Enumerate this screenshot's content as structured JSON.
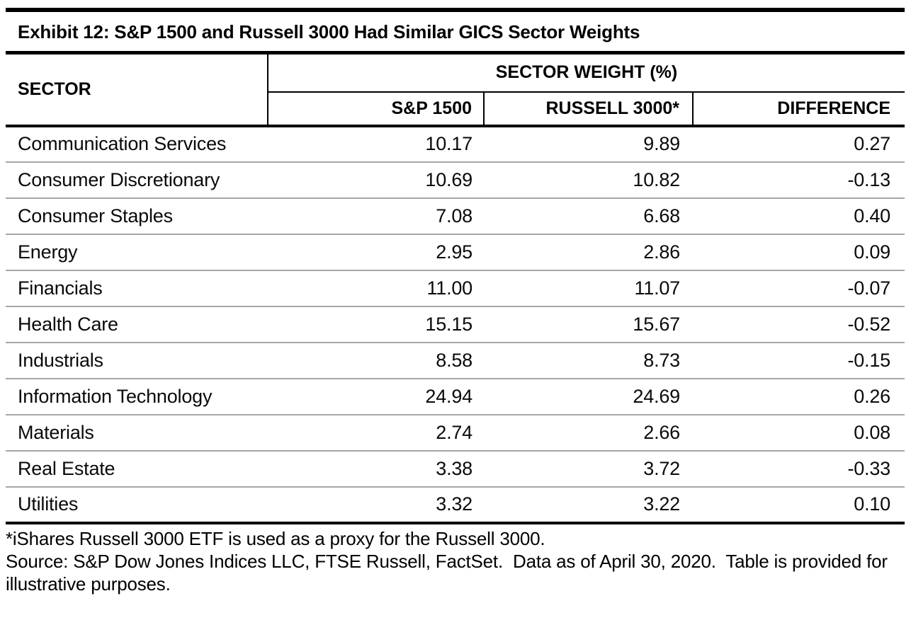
{
  "title": "Exhibit 12: S&P 1500 and Russell 3000 Had Similar GICS Sector Weights",
  "table": {
    "sector_header": "SECTOR",
    "group_header": "SECTOR WEIGHT (%)",
    "columns": [
      "S&P 1500",
      "RUSSELL 3000*",
      "DIFFERENCE"
    ],
    "rows": [
      {
        "sector": "Communication Services",
        "sp1500": "10.17",
        "russell3000": "9.89",
        "difference": "0.27"
      },
      {
        "sector": "Consumer Discretionary",
        "sp1500": "10.69",
        "russell3000": "10.82",
        "difference": "-0.13"
      },
      {
        "sector": "Consumer Staples",
        "sp1500": "7.08",
        "russell3000": "6.68",
        "difference": "0.40"
      },
      {
        "sector": "Energy",
        "sp1500": "2.95",
        "russell3000": "2.86",
        "difference": "0.09"
      },
      {
        "sector": "Financials",
        "sp1500": "11.00",
        "russell3000": "11.07",
        "difference": "-0.07"
      },
      {
        "sector": "Health Care",
        "sp1500": "15.15",
        "russell3000": "15.67",
        "difference": "-0.52"
      },
      {
        "sector": "Industrials",
        "sp1500": "8.58",
        "russell3000": "8.73",
        "difference": "-0.15"
      },
      {
        "sector": "Information Technology",
        "sp1500": "24.94",
        "russell3000": "24.69",
        "difference": "0.26"
      },
      {
        "sector": "Materials",
        "sp1500": "2.74",
        "russell3000": "2.66",
        "difference": "0.08"
      },
      {
        "sector": "Real Estate",
        "sp1500": "3.38",
        "russell3000": "3.72",
        "difference": "-0.33"
      },
      {
        "sector": "Utilities",
        "sp1500": "3.32",
        "russell3000": "3.22",
        "difference": "0.10"
      }
    ]
  },
  "footnotes": [
    "*iShares Russell 3000 ETF is used as a proxy for the Russell 3000.",
    "Source: S&P Dow Jones Indices LLC, FTSE Russell, FactSet.  Data as of April 30, 2020.  Table is provided for illustrative purposes."
  ],
  "colors": {
    "text": "#000000",
    "rule_black": "#000000",
    "row_separator": "#a6a6a6",
    "background": "#ffffff"
  }
}
